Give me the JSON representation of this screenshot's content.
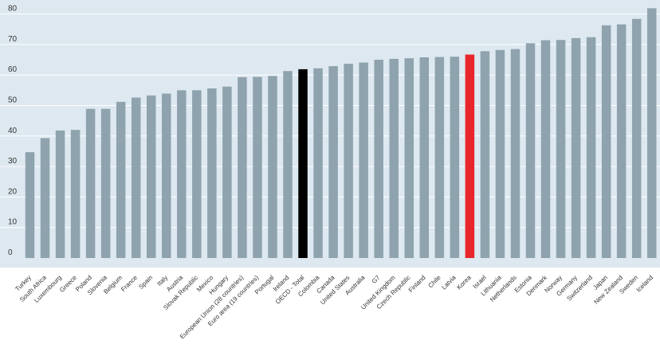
{
  "chart_data": {
    "type": "bar",
    "categories": [
      "Turkey",
      "South Africa",
      "Luxembourg",
      "Greece",
      "Poland",
      "Slovenia",
      "Belgium",
      "France",
      "Spain",
      "Italy",
      "Austria",
      "Slovak Republic",
      "Mexico",
      "Hungary",
      "European Union (28 countries)",
      "Euro area (19 countries)",
      "Portugal",
      "Ireland",
      "OECD - Total",
      "Colombia",
      "Canada",
      "United States",
      "Australia",
      "G7",
      "United Kingdom",
      "Czech Republic",
      "Finland",
      "Chile",
      "Latvia",
      "Korea",
      "Israel",
      "Lithuania",
      "Netherlands",
      "Estonia",
      "Denmark",
      "Norway",
      "Germany",
      "Switzerland",
      "Japan",
      "New Zealand",
      "Sweden",
      "Iceland"
    ],
    "values": [
      34.7,
      39.3,
      41.8,
      42.0,
      48.9,
      48.9,
      51.2,
      52.6,
      53.3,
      53.9,
      55.0,
      55.0,
      55.6,
      56.2,
      59.3,
      59.4,
      59.7,
      61.3,
      61.9,
      62.2,
      62.9,
      63.7,
      64.1,
      65.0,
      65.3,
      65.5,
      65.8,
      65.9,
      66.0,
      66.7,
      67.8,
      68.2,
      68.5,
      70.4,
      71.4,
      71.5,
      72.1,
      72.4,
      76.3,
      76.6,
      78.4,
      81.9
    ],
    "highlight": {
      "OECD - Total": "#000000",
      "Korea": "#e8262b"
    },
    "label_highlight": {
      "Korea": "#e8262b"
    },
    "bar_color": "#8fa3ae",
    "background_color": "#dde8f0",
    "y_ticks": [
      0,
      10,
      20,
      30,
      40,
      50,
      60,
      70,
      80
    ],
    "ylim": [
      0,
      84
    ],
    "grid": true
  }
}
